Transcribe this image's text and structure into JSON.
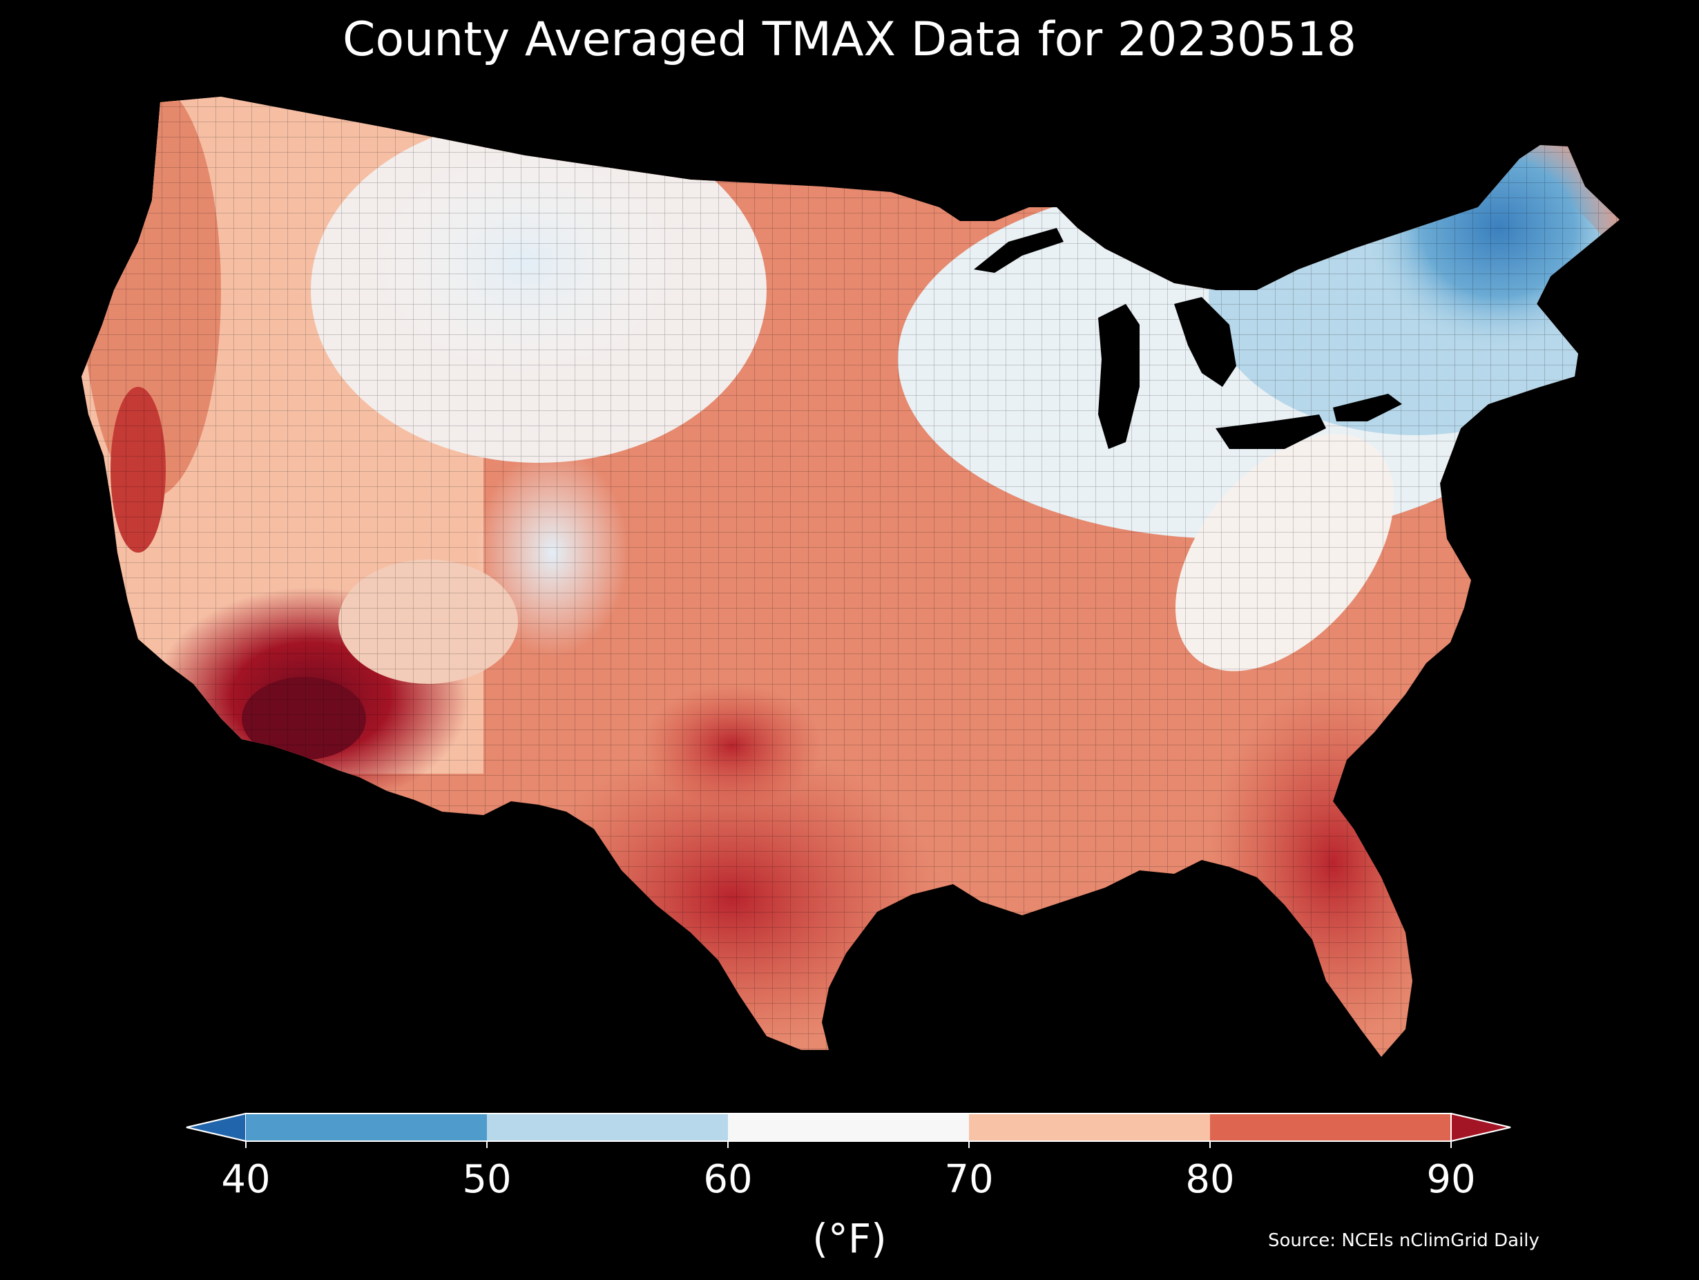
{
  "title": "County Averaged TMAX Data for 20230518",
  "colorbar": {
    "ticks": [
      "40",
      "50",
      "60",
      "70",
      "80",
      "90"
    ],
    "unit": "(°F)",
    "bins": [
      {
        "range": "<40",
        "color": "#2166ac"
      },
      {
        "range": "40-50",
        "color": "#4f9bcb"
      },
      {
        "range": "50-60",
        "color": "#b7d8ea"
      },
      {
        "range": "60-70",
        "color": "#f7f7f7"
      },
      {
        "range": "70-80",
        "color": "#f8c2a6"
      },
      {
        "range": "80-90",
        "color": "#de6650"
      },
      {
        "range": ">90",
        "color": "#a31425"
      }
    ]
  },
  "source": "Source: NCEIs nClimGrid Daily"
}
